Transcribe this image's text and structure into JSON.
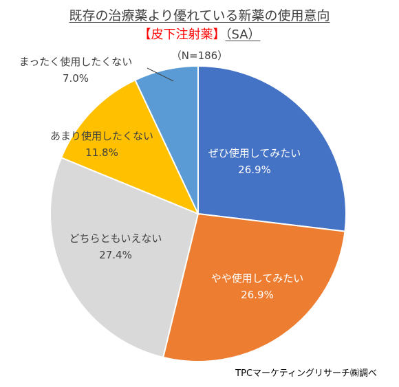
{
  "title": "既存の治療薬より優れている新薬の使用意向",
  "subtitle_main": "【皮下注射薬】",
  "subtitle_suffix": "（SA）",
  "sample_size": "（N=186）",
  "source": "TPCマーケティングリサーチ㈱調べ",
  "chart_data": {
    "type": "pie",
    "start": "12 o'clock, clockwise",
    "slices": [
      {
        "label": "ぜひ使用してみたい",
        "value": 26.9,
        "value_label": "26.9%",
        "color": "#4472c4"
      },
      {
        "label": "やや使用してみたい",
        "value": 26.9,
        "value_label": "26.9%",
        "color": "#ed7d31"
      },
      {
        "label": "どちらともいえない",
        "value": 27.4,
        "value_label": "27.4%",
        "color": "#d9d9d9"
      },
      {
        "label": "あまり使用したくない",
        "value": 11.8,
        "value_label": "11.8%",
        "color": "#ffc000"
      },
      {
        "label": "まったく使用したくない",
        "value": 7.0,
        "value_label": "7.0%",
        "color": "#5b9bd5"
      }
    ]
  }
}
